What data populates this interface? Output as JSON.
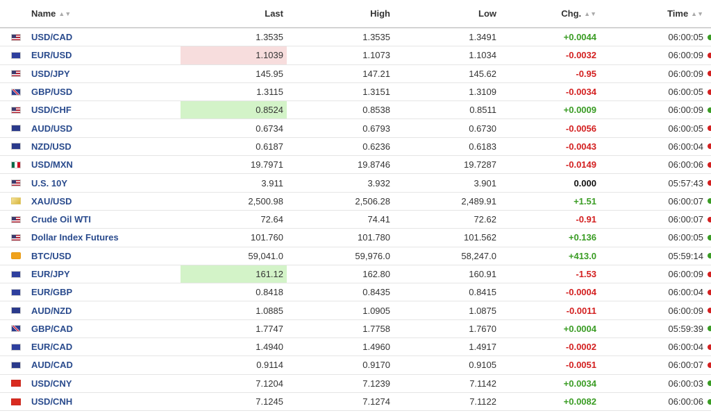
{
  "columns": {
    "name": "Name",
    "last": "Last",
    "high": "High",
    "low": "Low",
    "chg": "Chg.",
    "time": "Time"
  },
  "rows": [
    {
      "flag": "US",
      "name": "USD/CAD",
      "last": "1.3535",
      "high": "1.3535",
      "low": "1.3491",
      "chg": "+0.0044",
      "dir": "pos",
      "time": "06:00:05",
      "highlight": ""
    },
    {
      "flag": "EU",
      "name": "EUR/USD",
      "last": "1.1039",
      "high": "1.1073",
      "low": "1.1034",
      "chg": "-0.0032",
      "dir": "neg",
      "time": "06:00:09",
      "highlight": "red"
    },
    {
      "flag": "US",
      "name": "USD/JPY",
      "last": "145.95",
      "high": "147.21",
      "low": "145.62",
      "chg": "-0.95",
      "dir": "neg",
      "time": "06:00:09",
      "highlight": ""
    },
    {
      "flag": "GB",
      "name": "GBP/USD",
      "last": "1.3115",
      "high": "1.3151",
      "low": "1.3109",
      "chg": "-0.0034",
      "dir": "neg",
      "time": "06:00:05",
      "highlight": ""
    },
    {
      "flag": "US",
      "name": "USD/CHF",
      "last": "0.8524",
      "high": "0.8538",
      "low": "0.8511",
      "chg": "+0.0009",
      "dir": "pos",
      "time": "06:00:09",
      "highlight": "green"
    },
    {
      "flag": "AU",
      "name": "AUD/USD",
      "last": "0.6734",
      "high": "0.6793",
      "low": "0.6730",
      "chg": "-0.0056",
      "dir": "neg",
      "time": "06:00:05",
      "highlight": ""
    },
    {
      "flag": "NZ",
      "name": "NZD/USD",
      "last": "0.6187",
      "high": "0.6236",
      "low": "0.6183",
      "chg": "-0.0043",
      "dir": "neg",
      "time": "06:00:04",
      "highlight": ""
    },
    {
      "flag": "MX",
      "name": "USD/MXN",
      "last": "19.7971",
      "high": "19.8746",
      "low": "19.7287",
      "chg": "-0.0149",
      "dir": "neg",
      "time": "06:00:06",
      "highlight": ""
    },
    {
      "flag": "US",
      "name": "U.S. 10Y",
      "last": "3.911",
      "high": "3.932",
      "low": "3.901",
      "chg": "0.000",
      "dir": "neu",
      "time": "05:57:43",
      "highlight": ""
    },
    {
      "flag": "XAU",
      "name": "XAU/USD",
      "last": "2,500.98",
      "high": "2,506.28",
      "low": "2,489.91",
      "chg": "+1.51",
      "dir": "pos",
      "time": "06:00:07",
      "highlight": ""
    },
    {
      "flag": "US",
      "name": "Crude Oil WTI",
      "last": "72.64",
      "high": "74.41",
      "low": "72.62",
      "chg": "-0.91",
      "dir": "neg",
      "time": "06:00:07",
      "highlight": ""
    },
    {
      "flag": "US",
      "name": "Dollar Index Futures",
      "last": "101.760",
      "high": "101.780",
      "low": "101.562",
      "chg": "+0.136",
      "dir": "pos",
      "time": "06:00:05",
      "highlight": ""
    },
    {
      "flag": "BTC",
      "name": "BTC/USD",
      "last": "59,041.0",
      "high": "59,976.0",
      "low": "58,247.0",
      "chg": "+413.0",
      "dir": "pos",
      "time": "05:59:14",
      "highlight": ""
    },
    {
      "flag": "EU",
      "name": "EUR/JPY",
      "last": "161.12",
      "high": "162.80",
      "low": "160.91",
      "chg": "-1.53",
      "dir": "neg",
      "time": "06:00:09",
      "highlight": "green"
    },
    {
      "flag": "EU",
      "name": "EUR/GBP",
      "last": "0.8418",
      "high": "0.8435",
      "low": "0.8415",
      "chg": "-0.0004",
      "dir": "neg",
      "time": "06:00:04",
      "highlight": ""
    },
    {
      "flag": "AU",
      "name": "AUD/NZD",
      "last": "1.0885",
      "high": "1.0905",
      "low": "1.0875",
      "chg": "-0.0011",
      "dir": "neg",
      "time": "06:00:09",
      "highlight": ""
    },
    {
      "flag": "GB",
      "name": "GBP/CAD",
      "last": "1.7747",
      "high": "1.7758",
      "low": "1.7670",
      "chg": "+0.0004",
      "dir": "pos",
      "time": "05:59:39",
      "highlight": ""
    },
    {
      "flag": "EU",
      "name": "EUR/CAD",
      "last": "1.4940",
      "high": "1.4960",
      "low": "1.4917",
      "chg": "-0.0002",
      "dir": "neg",
      "time": "06:00:04",
      "highlight": ""
    },
    {
      "flag": "AU",
      "name": "AUD/CAD",
      "last": "0.9114",
      "high": "0.9170",
      "low": "0.9105",
      "chg": "-0.0051",
      "dir": "neg",
      "time": "06:00:07",
      "highlight": ""
    },
    {
      "flag": "CN",
      "name": "USD/CNY",
      "last": "7.1204",
      "high": "7.1239",
      "low": "7.1142",
      "chg": "+0.0034",
      "dir": "pos",
      "time": "06:00:03",
      "highlight": ""
    },
    {
      "flag": "CN",
      "name": "USD/CNH",
      "last": "7.1245",
      "high": "7.1274",
      "low": "7.1122",
      "chg": "+0.0082",
      "dir": "pos",
      "time": "06:00:06",
      "highlight": ""
    }
  ],
  "colors": {
    "positive": "#3a9c24",
    "negative": "#d32020",
    "neutral": "#111111",
    "name_link": "#2a4b8d",
    "highlight_up": "#d3f3c8",
    "highlight_down": "#f7dddd"
  },
  "icons": {
    "sort": "sort-arrows-icon",
    "status_dot": "status-dot-icon"
  }
}
